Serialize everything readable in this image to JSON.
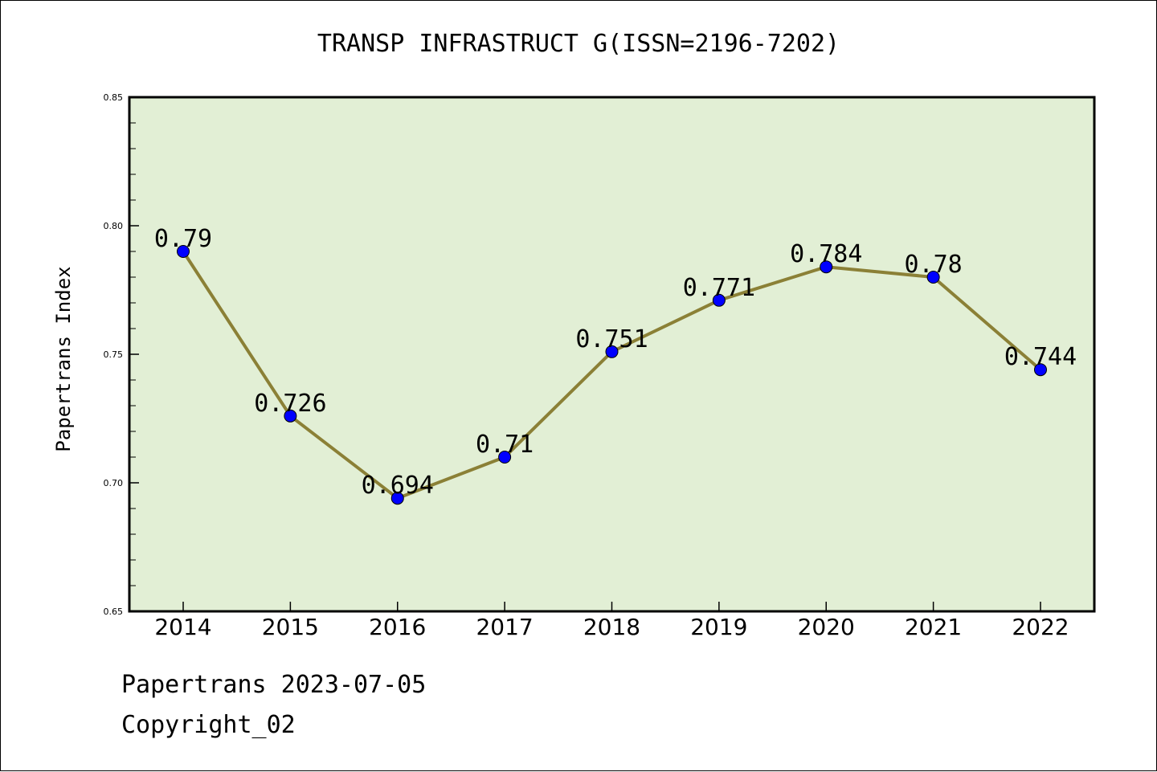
{
  "chart_data": {
    "type": "line",
    "title": "TRANSP INFRASTRUCT G(ISSN=2196-7202)",
    "xlabel": "",
    "ylabel": "Papertrans Index",
    "categories": [
      "2014",
      "2015",
      "2016",
      "2017",
      "2018",
      "2019",
      "2020",
      "2021",
      "2022"
    ],
    "values": [
      0.79,
      0.726,
      0.694,
      0.71,
      0.751,
      0.771,
      0.784,
      0.78,
      0.744
    ],
    "data_labels": [
      "0.79",
      "0.726",
      "0.694",
      "0.71",
      "0.751",
      "0.771",
      "0.784",
      "0.78",
      "0.744"
    ],
    "ylim": [
      0.65,
      0.85
    ],
    "y_ticks": [
      0.65,
      0.7,
      0.75,
      0.8,
      0.85
    ],
    "y_tick_labels": [
      "0.65",
      "0.70",
      "0.75",
      "0.80",
      "0.85"
    ],
    "grid": false,
    "colors": {
      "plot_background": "#e2efd5",
      "line": "#8b8036",
      "marker": "#0000ff"
    }
  },
  "footer": {
    "source": "Papertrans 2023-07-05",
    "copyright": "Copyright_02"
  }
}
